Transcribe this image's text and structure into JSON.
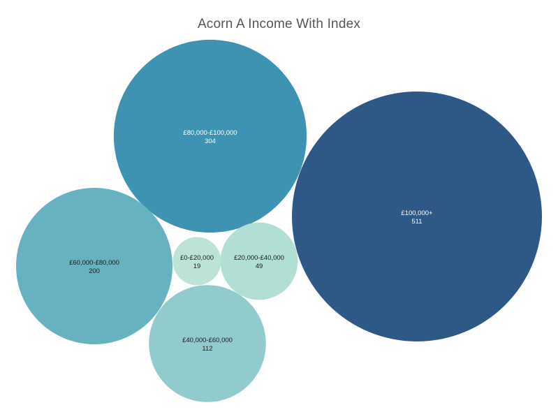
{
  "chart_data": {
    "type": "bubble",
    "title": "Acorn A Income With Index",
    "series": [
      {
        "category": "£100,000+",
        "value": 511,
        "color": "#2e5885",
        "text_color": "#ffffff"
      },
      {
        "category": "£80,000-£100,000",
        "value": 304,
        "color": "#3e93b2",
        "text_color": "#ffffff"
      },
      {
        "category": "£60,000-£80,000",
        "value": 200,
        "color": "#66b2c0",
        "text_color": "#1a1a1a"
      },
      {
        "category": "£40,000-£60,000",
        "value": 112,
        "color": "#92cbce",
        "text_color": "#1a1a1a"
      },
      {
        "category": "£20,000-£40,000",
        "value": 49,
        "color": "#b1dfd4",
        "text_color": "#1a1a1a"
      },
      {
        "category": "£0-£20,000",
        "value": 19,
        "color": "#bde3d7",
        "text_color": "#1a1a1a"
      }
    ]
  }
}
